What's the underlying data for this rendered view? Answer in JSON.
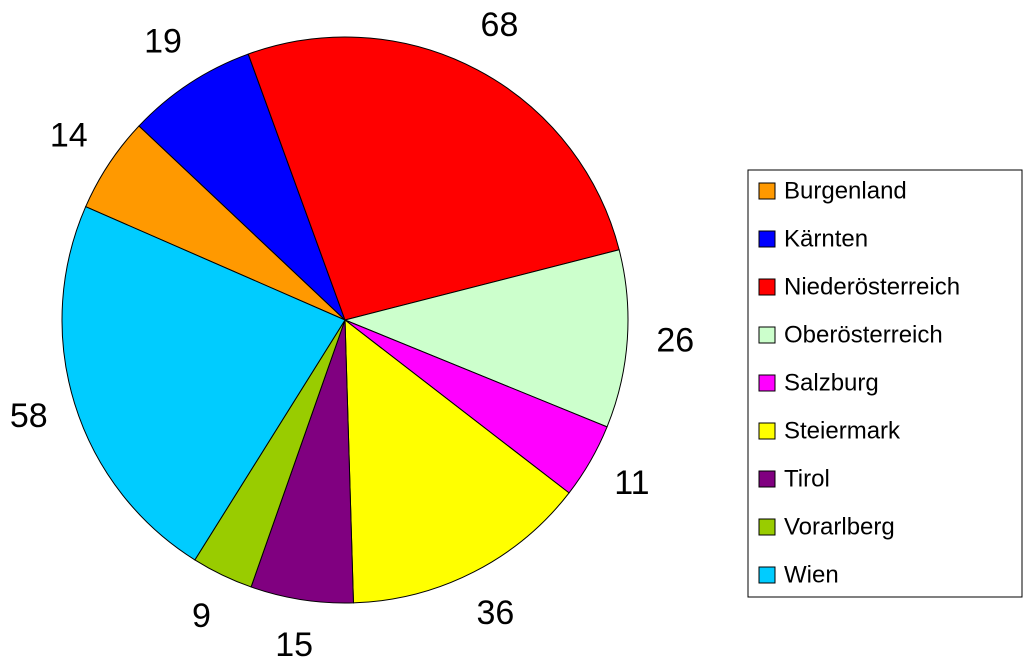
{
  "chart_data": {
    "type": "pie",
    "categories": [
      "Burgenland",
      "Kärnten",
      "Niederösterreich",
      "Oberösterreich",
      "Salzburg",
      "Steiermark",
      "Tirol",
      "Vorarlberg",
      "Wien"
    ],
    "values": [
      14,
      19,
      68,
      26,
      11,
      36,
      15,
      9,
      58
    ],
    "colors": [
      "#ff9900",
      "#0000ff",
      "#ff0000",
      "#ccffcc",
      "#ff00ff",
      "#ffff00",
      "#800080",
      "#99cc00",
      "#00ccff"
    ],
    "legend": "right"
  }
}
